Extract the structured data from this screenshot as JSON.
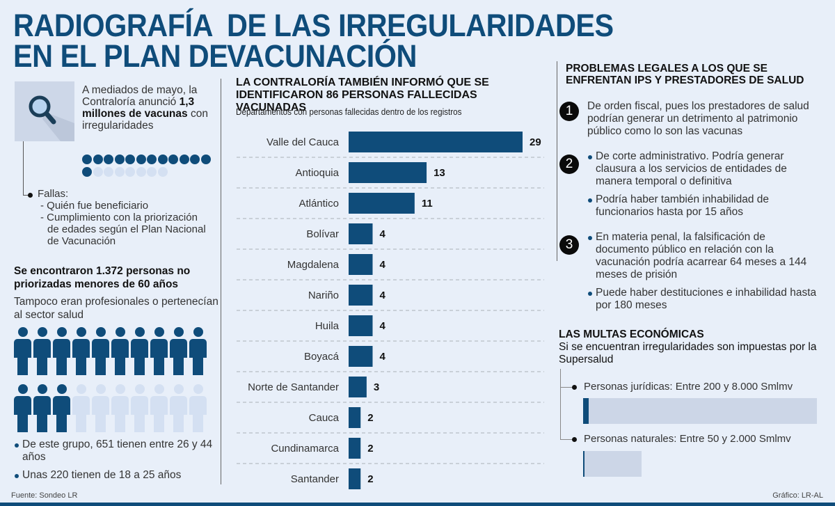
{
  "title": {
    "line1_left": "RADIOGRAFÍA",
    "line1_right": "DE LAS IRREGULARIDADES",
    "line2_left": "EN EL PLAN DE",
    "line2_right": "VACUNACIÓN"
  },
  "left": {
    "icon": "magnifier-icon",
    "intro_pre": "A mediados de mayo, la Contraloría anunció ",
    "intro_bold1": "1,3 millones de",
    "intro_bold2": "vacunas",
    "intro_post": " con irregularidades",
    "dots": {
      "filled": 13,
      "total": 20
    },
    "fallas_label": "Fallas:",
    "fallas_items": [
      "- Quién fue beneficiario",
      "- Cumplimiento con la priorización",
      "de edades según el Plan Nacional",
      "de Vacunación"
    ],
    "heading": "Se encontraron 1.372 personas no priorizadas menores de 60 años",
    "subheading": "Tampoco eran profesionales o pertenecían al sector salud",
    "people": {
      "filled": 13,
      "total": 20
    },
    "bullets": [
      "De este grupo, 651 tienen entre 26 y 44 años",
      "Unas 220 tienen de 18 a 25 años"
    ]
  },
  "chart_data": {
    "type": "bar",
    "orientation": "horizontal",
    "title": "LA CONTRALORÍA TAMBIÉN INFORMÓ QUE SE IDENTIFICARON 86 PERSONAS FALLECIDAS VACUNADAS",
    "subtitle": "Departamentos con personas fallecidas dentro de los registros",
    "xlabel": "",
    "ylabel": "",
    "xlim": [
      0,
      29
    ],
    "grid": "dashed-row-separators",
    "categories": [
      "Valle del Cauca",
      "Antioquia",
      "Atlántico",
      "Bolívar",
      "Magdalena",
      "Nariño",
      "Huila",
      "Boyacá",
      "Norte de Santander",
      "Cauca",
      "Cundinamarca",
      "Santander"
    ],
    "values": [
      29,
      13,
      11,
      4,
      4,
      4,
      4,
      4,
      3,
      2,
      2,
      2
    ],
    "bar_color": "#0f4c7a"
  },
  "right": {
    "heading": "PROBLEMAS LEGALES A LOS QUE SE ENFRENTAN IPS Y PRESTADORES DE SALUD",
    "items": [
      {
        "number": "1",
        "texts": [
          "De orden fiscal, pues los prestadores de salud podrían generar un detrimento al patrimonio público como lo son las vacunas"
        ]
      },
      {
        "number": "2",
        "texts": [
          "De corte administrativo. Podría generar clausura a los servicios de entidades de manera temporal o definitiva",
          "Podría haber también inhabilidad de funcionarios hasta por 15 años"
        ]
      },
      {
        "number": "3",
        "texts": [
          "En materia penal, la falsificación de documento público en relación con la vacunación podría acarrear 64 meses a 144 meses de prisión",
          "Puede haber destituciones e inhabilidad hasta por 180 meses"
        ]
      }
    ],
    "multas_heading": "LAS MULTAS ECONÓMICAS",
    "multas_sub": "Si se encuentran irregularidades son impuestas por la Supersalud",
    "fines": [
      {
        "label": "Personas jurídicas: Entre 200 y 8.000 Smlmv",
        "min": 200,
        "max": 8000
      },
      {
        "label": "Personas naturales: Entre 50 y 2.000 Smlmv",
        "min": 50,
        "max": 2000
      }
    ]
  },
  "footer": {
    "source": "Fuente: Sondeo LR",
    "credit": "Gráfico: LR-AL"
  },
  "colors": {
    "accent": "#0f4c7a",
    "light": "#d4e0f2",
    "background": "#e8eff9"
  }
}
